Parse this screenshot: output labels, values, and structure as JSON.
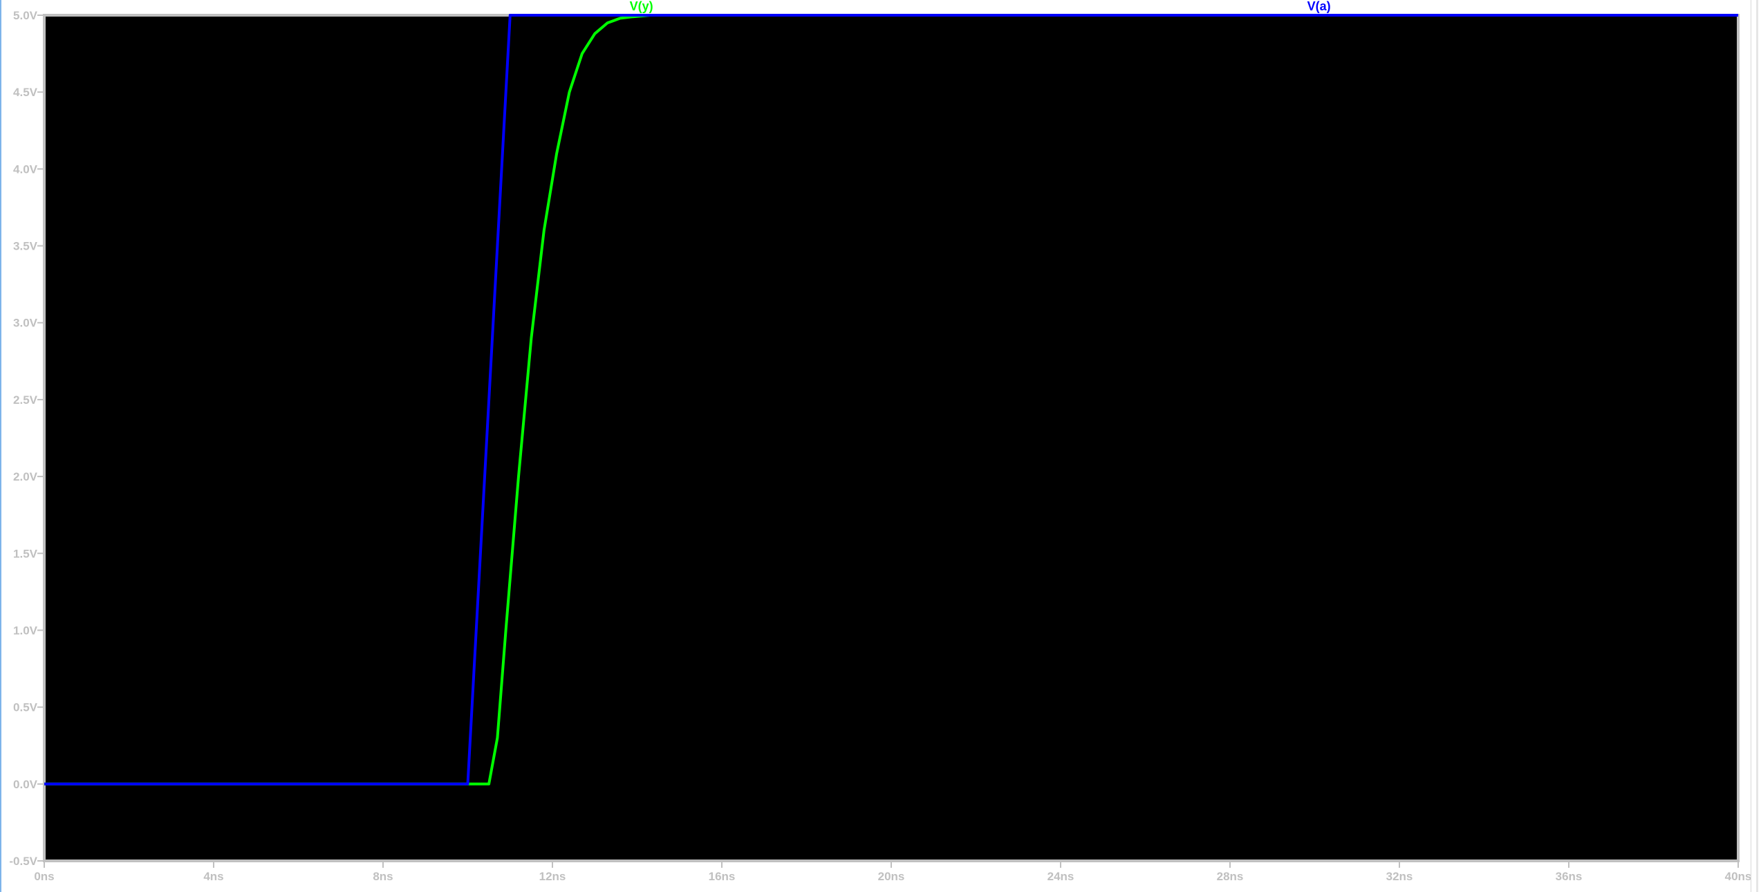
{
  "chart_data": {
    "type": "line",
    "xlabel": "",
    "ylabel": "",
    "xlim": [
      0,
      40
    ],
    "ylim": [
      -0.5,
      5.0
    ],
    "x_unit": "ns",
    "y_unit": "V",
    "x_ticks": [
      "0ns",
      "4ns",
      "8ns",
      "12ns",
      "16ns",
      "20ns",
      "24ns",
      "28ns",
      "32ns",
      "36ns",
      "40ns"
    ],
    "y_ticks": [
      "5.0V",
      "4.5V",
      "4.0V",
      "3.5V",
      "3.0V",
      "2.5V",
      "2.0V",
      "1.5V",
      "1.0V",
      "0.5V",
      "0.0V",
      "-0.5V"
    ],
    "background": "#000000",
    "axis_color": "#c0c0c0",
    "grid": false,
    "legend": "top",
    "series": [
      {
        "name": "V(y)",
        "color": "#00ff00",
        "x": [
          0,
          10.0,
          10.5,
          10.7,
          10.9,
          11.2,
          11.5,
          11.8,
          12.1,
          12.4,
          12.7,
          13.0,
          13.3,
          13.6,
          13.9,
          14.3
        ],
        "y": [
          0,
          0,
          0,
          0.3,
          1.0,
          2.0,
          2.9,
          3.6,
          4.1,
          4.5,
          4.75,
          4.88,
          4.95,
          4.98,
          4.99,
          5.0
        ]
      },
      {
        "name": "V(a)",
        "color": "#0000ff",
        "x": [
          0,
          10.0,
          11.0,
          40.0
        ],
        "y": [
          0,
          0,
          5.0,
          5.0
        ]
      }
    ]
  }
}
